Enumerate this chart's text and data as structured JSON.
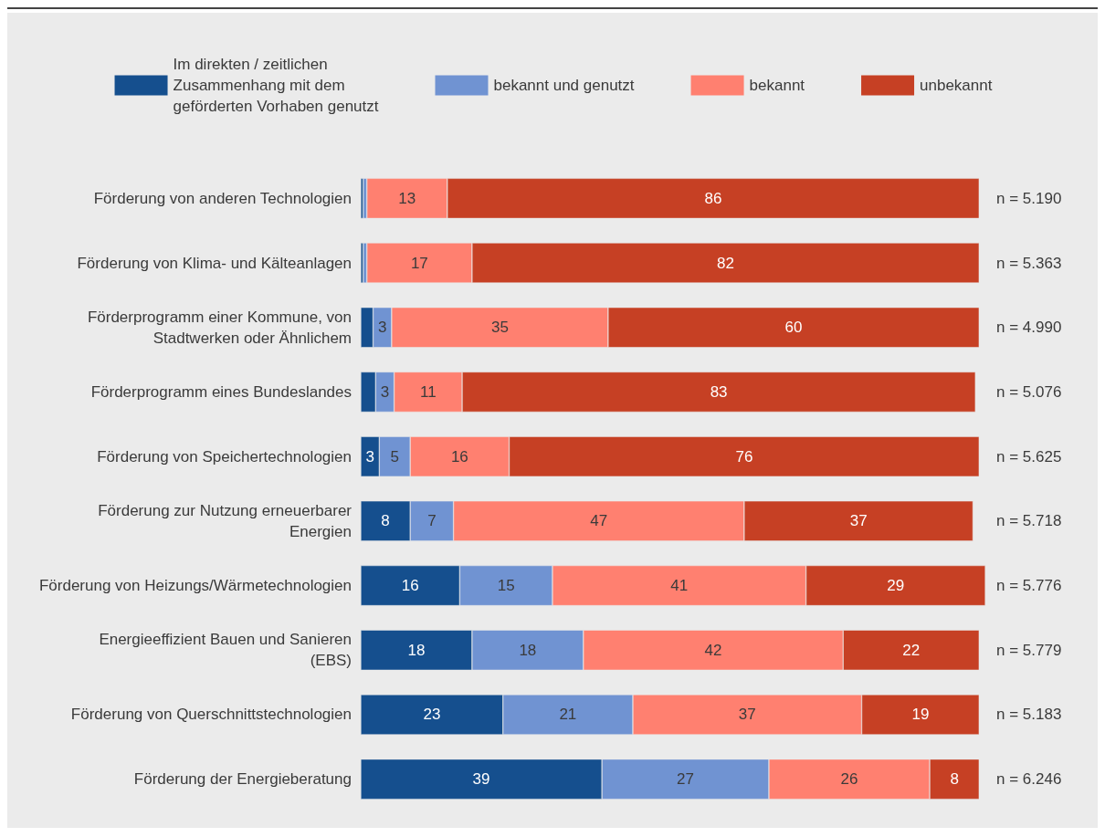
{
  "chart_data": {
    "type": "bar",
    "orientation": "horizontal",
    "stacked": true,
    "categories": [
      "Förderung von anderen Technologien",
      "Förderung von Klima- und Kälteanlagen",
      "Förderprogramm einer Kommune, von Stadtwerken oder Ähnlichem",
      "Förderprogramm eines Bundeslandes",
      "Förderung von Speichertechnologien",
      "Förderung zur Nutzung erneuerbarer Energien",
      "Förderung von Heizungs/Wärmetechnologien",
      "Energieeffizient Bauen und Sanieren (EBS)",
      "Förderung von Querschnittstechnologien",
      "Förderung der Energieberatung"
    ],
    "series": [
      {
        "name": "Im direkten / zeitlichen Zusammenhang mit dem geförderten Vorhaben genutzt",
        "color": "#154f8e",
        "values": [
          0.4,
          0.4,
          2,
          2.4,
          3,
          8,
          16,
          18,
          23,
          39
        ],
        "value_labels": [
          null,
          null,
          null,
          null,
          "3",
          "8",
          "16",
          "18",
          "23",
          "39"
        ]
      },
      {
        "name": "bekannt und genutzt",
        "color": "#7093d2",
        "values": [
          0.6,
          0.6,
          3,
          3,
          5,
          7,
          15,
          18,
          21,
          27
        ],
        "value_labels": [
          null,
          null,
          "3",
          "3",
          "5",
          "7",
          "15",
          "18",
          "21",
          "27"
        ]
      },
      {
        "name": "bekannt",
        "color": "#ff8070",
        "values": [
          13,
          17,
          35,
          11,
          16,
          47,
          41,
          42,
          37,
          26
        ],
        "value_labels": [
          "13",
          "17",
          "35",
          "11",
          "16",
          "47",
          "41",
          "42",
          "37",
          "26"
        ]
      },
      {
        "name": "unbekannt",
        "color": "#c64024",
        "values": [
          86,
          82,
          60,
          83,
          76,
          37,
          29,
          22,
          19,
          8
        ],
        "value_labels": [
          "86",
          "82",
          "60",
          "83",
          "76",
          "37",
          "29",
          "22",
          "19",
          "8"
        ]
      }
    ],
    "annotations": [
      "n = 5.190",
      "n = 5.363",
      "n = 4.990",
      "n = 5.076",
      "n = 5.625",
      "n = 5.718",
      "n = 5.776",
      "n = 5.779",
      "n = 5.183",
      "n = 6.246"
    ],
    "xlim": [
      0,
      101
    ],
    "tick_labels": "y",
    "legend": "top",
    "grid": false
  }
}
